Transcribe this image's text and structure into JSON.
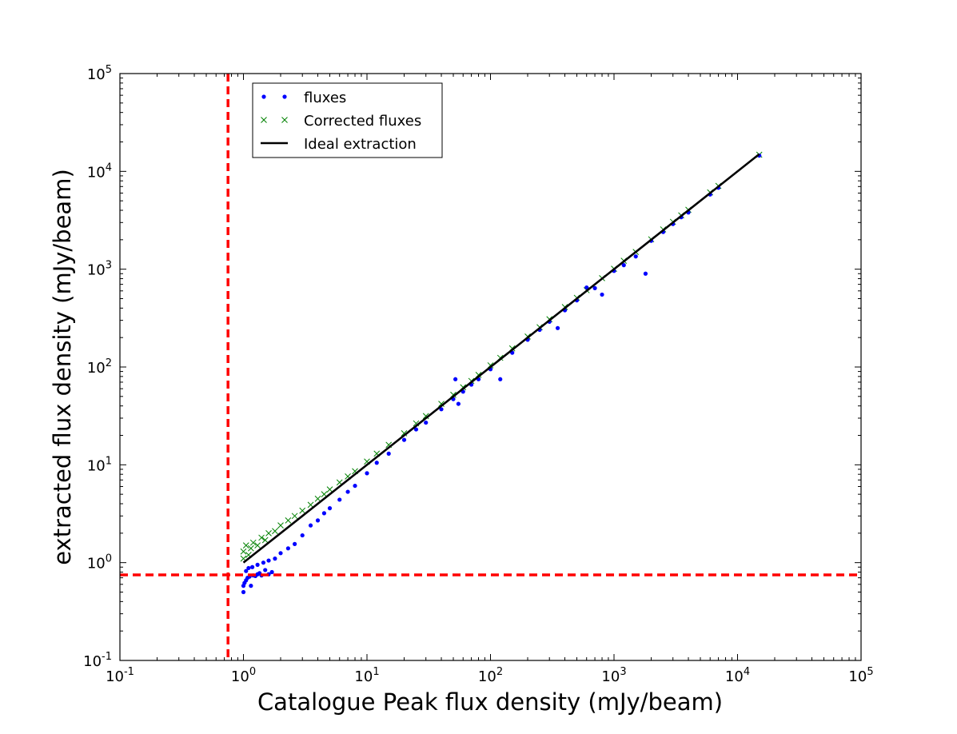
{
  "chart_data": {
    "type": "scatter",
    "title": "",
    "xlabel": "Catalogue Peak flux density (mJy/beam)",
    "ylabel": "extracted flux density (mJy/beam)",
    "xscale": "log",
    "yscale": "log",
    "xlim": [
      0.1,
      100000
    ],
    "ylim": [
      0.1,
      100000
    ],
    "grid": false,
    "legend_position": "top-left",
    "x_ticks": [
      {
        "base": "10",
        "exp": "-1"
      },
      {
        "base": "10",
        "exp": "0"
      },
      {
        "base": "10",
        "exp": "1"
      },
      {
        "base": "10",
        "exp": "2"
      },
      {
        "base": "10",
        "exp": "3"
      },
      {
        "base": "10",
        "exp": "4"
      },
      {
        "base": "10",
        "exp": "5"
      }
    ],
    "y_ticks": [
      {
        "base": "10",
        "exp": "-1"
      },
      {
        "base": "10",
        "exp": "0"
      },
      {
        "base": "10",
        "exp": "1"
      },
      {
        "base": "10",
        "exp": "2"
      },
      {
        "base": "10",
        "exp": "3"
      },
      {
        "base": "10",
        "exp": "4"
      },
      {
        "base": "10",
        "exp": "5"
      }
    ],
    "series": [
      {
        "name": "fluxes",
        "marker": "dot",
        "color": "#0000ff",
        "points": [
          [
            1.0,
            0.5
          ],
          [
            1.0,
            0.58
          ],
          [
            1.02,
            0.62
          ],
          [
            1.05,
            0.66
          ],
          [
            1.08,
            0.7
          ],
          [
            1.12,
            0.72
          ],
          [
            1.15,
            0.58
          ],
          [
            1.2,
            0.74
          ],
          [
            1.25,
            0.73
          ],
          [
            1.3,
            0.76
          ],
          [
            1.35,
            0.78
          ],
          [
            1.4,
            0.74
          ],
          [
            1.5,
            0.84
          ],
          [
            1.6,
            0.76
          ],
          [
            1.7,
            0.8
          ],
          [
            1.05,
            0.82
          ],
          [
            1.1,
            0.88
          ],
          [
            1.18,
            0.9
          ],
          [
            1.3,
            0.95
          ],
          [
            1.45,
            1.0
          ],
          [
            1.6,
            1.05
          ],
          [
            1.8,
            1.1
          ],
          [
            2.0,
            1.25
          ],
          [
            2.3,
            1.4
          ],
          [
            2.6,
            1.55
          ],
          [
            3.0,
            1.9
          ],
          [
            3.5,
            2.4
          ],
          [
            4.0,
            2.7
          ],
          [
            4.5,
            3.2
          ],
          [
            5.0,
            3.6
          ],
          [
            6.0,
            4.4
          ],
          [
            7.0,
            5.3
          ],
          [
            8.0,
            6.1
          ],
          [
            10,
            8.2
          ],
          [
            12,
            10.5
          ],
          [
            15,
            13
          ],
          [
            20,
            18
          ],
          [
            25,
            23
          ],
          [
            30,
            27
          ],
          [
            40,
            37
          ],
          [
            50,
            47
          ],
          [
            52,
            75
          ],
          [
            55,
            42
          ],
          [
            60,
            56
          ],
          [
            70,
            66
          ],
          [
            80,
            75
          ],
          [
            100,
            95
          ],
          [
            120,
            75
          ],
          [
            150,
            140
          ],
          [
            200,
            190
          ],
          [
            250,
            240
          ],
          [
            300,
            290
          ],
          [
            350,
            250
          ],
          [
            400,
            380
          ],
          [
            500,
            480
          ],
          [
            600,
            650
          ],
          [
            700,
            640
          ],
          [
            800,
            550
          ],
          [
            1000,
            960
          ],
          [
            1200,
            1100
          ],
          [
            1500,
            1350
          ],
          [
            1800,
            900
          ],
          [
            2000,
            1950
          ],
          [
            2500,
            2400
          ],
          [
            3000,
            2900
          ],
          [
            3500,
            3400
          ],
          [
            4000,
            3800
          ],
          [
            6000,
            5800
          ],
          [
            7000,
            6800
          ],
          [
            15000,
            14500
          ]
        ]
      },
      {
        "name": "Corrected fluxes",
        "marker": "x",
        "color": "#008000",
        "points": [
          [
            1.0,
            1.1
          ],
          [
            1.0,
            1.3
          ],
          [
            1.05,
            1.5
          ],
          [
            1.1,
            1.2
          ],
          [
            1.15,
            1.4
          ],
          [
            1.2,
            1.6
          ],
          [
            1.3,
            1.5
          ],
          [
            1.4,
            1.8
          ],
          [
            1.5,
            1.7
          ],
          [
            1.6,
            2.0
          ],
          [
            1.8,
            2.1
          ],
          [
            2.0,
            2.4
          ],
          [
            2.3,
            2.7
          ],
          [
            2.6,
            3.0
          ],
          [
            3.0,
            3.4
          ],
          [
            3.5,
            3.9
          ],
          [
            4.0,
            4.5
          ],
          [
            4.5,
            5.0
          ],
          [
            5.0,
            5.6
          ],
          [
            6.0,
            6.6
          ],
          [
            7.0,
            7.6
          ],
          [
            8.0,
            8.6
          ],
          [
            10,
            10.8
          ],
          [
            12,
            13
          ],
          [
            15,
            16
          ],
          [
            20,
            21
          ],
          [
            25,
            26.5
          ],
          [
            30,
            31.5
          ],
          [
            40,
            42
          ],
          [
            50,
            52
          ],
          [
            60,
            62
          ],
          [
            70,
            72
          ],
          [
            80,
            83
          ],
          [
            100,
            104
          ],
          [
            120,
            124
          ],
          [
            150,
            155
          ],
          [
            200,
            205
          ],
          [
            250,
            255
          ],
          [
            300,
            308
          ],
          [
            400,
            410
          ],
          [
            500,
            510
          ],
          [
            600,
            610
          ],
          [
            800,
            810
          ],
          [
            1000,
            1010
          ],
          [
            1200,
            1220
          ],
          [
            1500,
            1500
          ],
          [
            2000,
            2020
          ],
          [
            2500,
            2550
          ],
          [
            3000,
            3050
          ],
          [
            3500,
            3550
          ],
          [
            4000,
            4050
          ],
          [
            6000,
            6100
          ],
          [
            7000,
            7100
          ],
          [
            15000,
            14800
          ]
        ]
      },
      {
        "name": "Ideal extraction",
        "marker": "line",
        "color": "#000000",
        "points": [
          [
            1.0,
            1.0
          ],
          [
            15000,
            15000
          ]
        ]
      }
    ],
    "reference_lines": [
      {
        "orientation": "vertical",
        "x": 0.75,
        "color": "#ff0000",
        "style": "dashed"
      },
      {
        "orientation": "horizontal",
        "y": 0.75,
        "color": "#ff0000",
        "style": "dashed"
      }
    ]
  }
}
